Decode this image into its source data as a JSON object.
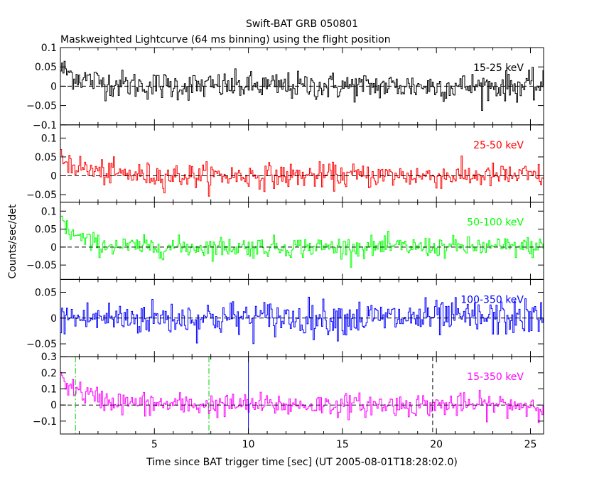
{
  "chart_data": {
    "type": "line",
    "title": "Swift-BAT GRB 050801",
    "subtitle": "Maskweighted Lightcurve (64 ms binning) using the flight position",
    "xlabel": "Time since BAT trigger time [sec] (UT 2005-08-01T18:28:02.0)",
    "ylabel": "Counts/sec/det",
    "xlim": [
      0,
      25.7
    ],
    "x_ticks": [
      5,
      10,
      15,
      20,
      25
    ],
    "bin_width_sec": 0.064,
    "panels": [
      {
        "name": "15-25 keV",
        "color": "#000000",
        "ylim": [
          -0.1,
          0.1
        ],
        "y_ticks": [
          -0.1,
          -0.05,
          0,
          0.05,
          0.1
        ],
        "y_tick_labels": [
          "−0.1",
          "−0.05",
          "0",
          "0.05",
          "0.1"
        ],
        "profile": {
          "peak": 0.045,
          "decay": 1.5,
          "noise": 0.018
        }
      },
      {
        "name": "25-50 keV",
        "color": "#ff0000",
        "ylim": [
          -0.07,
          0.135
        ],
        "y_ticks": [
          -0.05,
          0,
          0.05,
          0.1
        ],
        "y_tick_labels": [
          "−0.05",
          "0",
          "0.05",
          "0.1"
        ],
        "profile": {
          "peak": 0.05,
          "decay": 1.3,
          "noise": 0.016
        }
      },
      {
        "name": "50-100 keV",
        "color": "#00ff00",
        "ylim": [
          -0.09,
          0.125
        ],
        "y_ticks": [
          -0.05,
          0,
          0.05,
          0.1
        ],
        "y_tick_labels": [
          "−0.05",
          "0",
          "0.05",
          "0.1"
        ],
        "profile": {
          "peak": 0.075,
          "decay": 0.9,
          "noise": 0.014
        }
      },
      {
        "name": "100-350 keV",
        "color": "#0000ff",
        "ylim": [
          -0.075,
          0.075
        ],
        "y_ticks": [
          -0.05,
          0,
          0.05
        ],
        "y_tick_labels": [
          "−0.05",
          "0",
          "0.05"
        ],
        "profile": {
          "peak": 0.0,
          "decay": 1.0,
          "noise": 0.017
        }
      },
      {
        "name": "15-350 keV",
        "color": "#ff00ff",
        "ylim": [
          -0.18,
          0.3
        ],
        "y_ticks": [
          -0.1,
          0,
          0.1,
          0.2,
          0.3
        ],
        "y_tick_labels": [
          "−0.1",
          "0",
          "0.1",
          "0.2",
          "0.3"
        ],
        "profile": {
          "peak": 0.17,
          "decay": 1.4,
          "noise": 0.035
        }
      }
    ],
    "vertical_lines": [
      {
        "x": 0.8,
        "style": "dash-dot",
        "color": "#00cc00"
      },
      {
        "x": 7.9,
        "style": "dash-dot",
        "color": "#00cc00"
      },
      {
        "x": 10.0,
        "style": "solid",
        "color": "#0000ff"
      },
      {
        "x": 19.8,
        "style": "dashed",
        "color": "#000000"
      }
    ],
    "zero_line": {
      "style": "dashed",
      "color": "#000000"
    },
    "grid": false
  }
}
